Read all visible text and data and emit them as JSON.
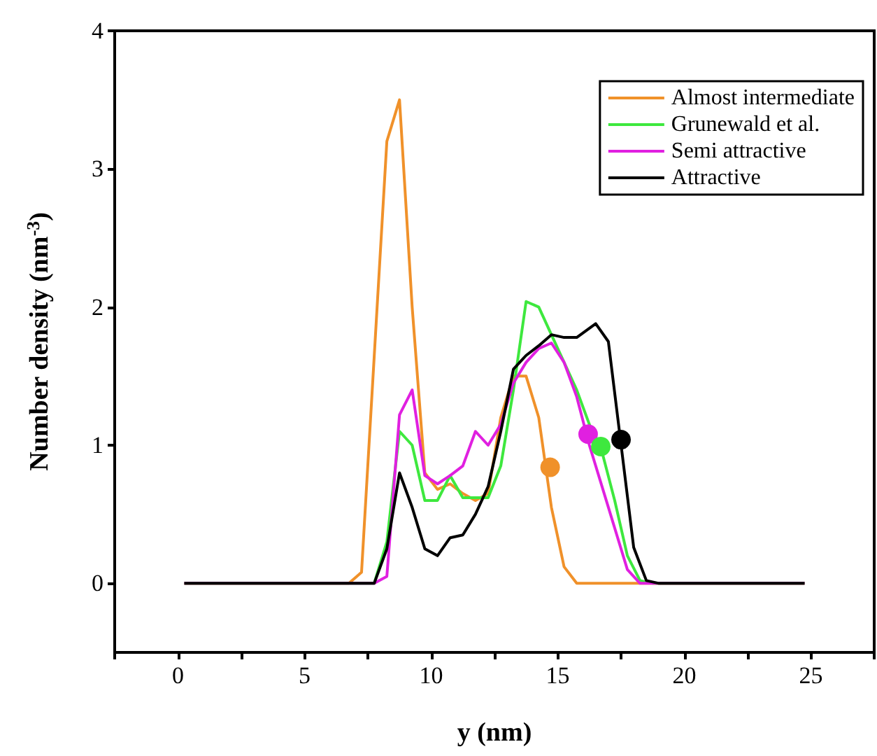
{
  "chart_data": {
    "type": "line",
    "xlabel": "y (nm)",
    "ylabel": "Number density (nm$^{-3}$)",
    "xlim": [
      -2.5,
      27.5
    ],
    "xticks": [
      {
        "value": -2.5,
        "label": null
      },
      0,
      {
        "value": 2.5,
        "label": null
      },
      5,
      {
        "value": 7.5,
        "label": null
      },
      10,
      {
        "value": 12.5,
        "label": null
      },
      15,
      {
        "value": 17.5,
        "label": null
      },
      20,
      {
        "value": 22.5,
        "label": null
      },
      25,
      {
        "value": 27.5,
        "label": null
      }
    ],
    "ylim": [
      -0.5,
      4
    ],
    "yticks": [
      0,
      1,
      2,
      3,
      4
    ],
    "grid": false,
    "legend": "top right",
    "marker": "none",
    "line_style": "solid",
    "series": [
      {
        "name": "Almost intermediate",
        "color": "#f0912a",
        "x": [
          0.25,
          6.75,
          7.25,
          8.25,
          8.75,
          9.25,
          9.75,
          10.25,
          10.75,
          11.25,
          11.75,
          12.25,
          12.75,
          13.25,
          13.75,
          14.25,
          14.75,
          15.25,
          15.75,
          24.75
        ],
        "values": [
          0,
          0,
          0.08,
          3.2,
          3.5,
          2.0,
          0.8,
          0.68,
          0.72,
          0.65,
          0.6,
          0.65,
          1.2,
          1.5,
          1.5,
          1.2,
          0.55,
          0.12,
          0,
          0
        ]
      },
      {
        "name": "Grunewald et al.",
        "color": "#3ee83e",
        "x": [
          0.25,
          7.75,
          8.25,
          8.75,
          9.25,
          9.75,
          10.25,
          10.75,
          11.25,
          11.75,
          12.25,
          12.75,
          13.25,
          13.75,
          14.25,
          14.75,
          15.25,
          15.75,
          16.25,
          16.75,
          17.25,
          17.75,
          18.25,
          18.75,
          24.75
        ],
        "values": [
          0,
          0,
          0.3,
          1.1,
          1.0,
          0.6,
          0.6,
          0.78,
          0.62,
          0.62,
          0.62,
          0.85,
          1.4,
          2.04,
          2.0,
          1.8,
          1.6,
          1.4,
          1.15,
          0.95,
          0.6,
          0.2,
          0.02,
          0,
          0
        ]
      },
      {
        "name": "Semi attractive",
        "color": "#e020e0",
        "x": [
          0.25,
          7.75,
          8.25,
          8.75,
          9.25,
          9.75,
          10.25,
          10.75,
          11.25,
          11.75,
          12.25,
          12.75,
          13.25,
          13.75,
          14.25,
          14.75,
          15.25,
          15.75,
          16.25,
          16.75,
          17.25,
          17.75,
          18.25,
          24.75
        ],
        "values": [
          0,
          0,
          0.05,
          1.22,
          1.4,
          0.78,
          0.72,
          0.78,
          0.85,
          1.1,
          1.0,
          1.15,
          1.45,
          1.6,
          1.7,
          1.74,
          1.6,
          1.35,
          1.0,
          0.7,
          0.4,
          0.1,
          0,
          0
        ]
      },
      {
        "name": "Attractive",
        "color": "#000000",
        "x": [
          0.25,
          7.75,
          8.25,
          8.75,
          9.25,
          9.75,
          10.25,
          10.75,
          11.25,
          11.75,
          12.25,
          12.75,
          13.25,
          13.75,
          14.25,
          14.75,
          15.25,
          15.75,
          16.5,
          17.0,
          18.0,
          18.5,
          19.0,
          24.75
        ],
        "values": [
          0,
          0,
          0.25,
          0.8,
          0.55,
          0.25,
          0.2,
          0.33,
          0.35,
          0.5,
          0.7,
          1.1,
          1.55,
          1.65,
          1.72,
          1.8,
          1.78,
          1.78,
          1.88,
          1.75,
          0.26,
          0.02,
          0,
          0
        ]
      },
      {
        "type": "scatter",
        "marker": "circle",
        "color": "#f0912a",
        "x": [
          14.7
        ],
        "values": [
          0.84
        ]
      },
      {
        "type": "scatter",
        "marker": "circle",
        "color": "#e020e0",
        "x": [
          16.2
        ],
        "values": [
          1.08
        ]
      },
      {
        "type": "scatter",
        "marker": "circle",
        "color": "#3ee83e",
        "x": [
          16.7
        ],
        "values": [
          0.99
        ]
      },
      {
        "type": "scatter",
        "marker": "circle",
        "color": "#000000",
        "x": [
          17.5
        ],
        "values": [
          1.04
        ]
      }
    ]
  }
}
